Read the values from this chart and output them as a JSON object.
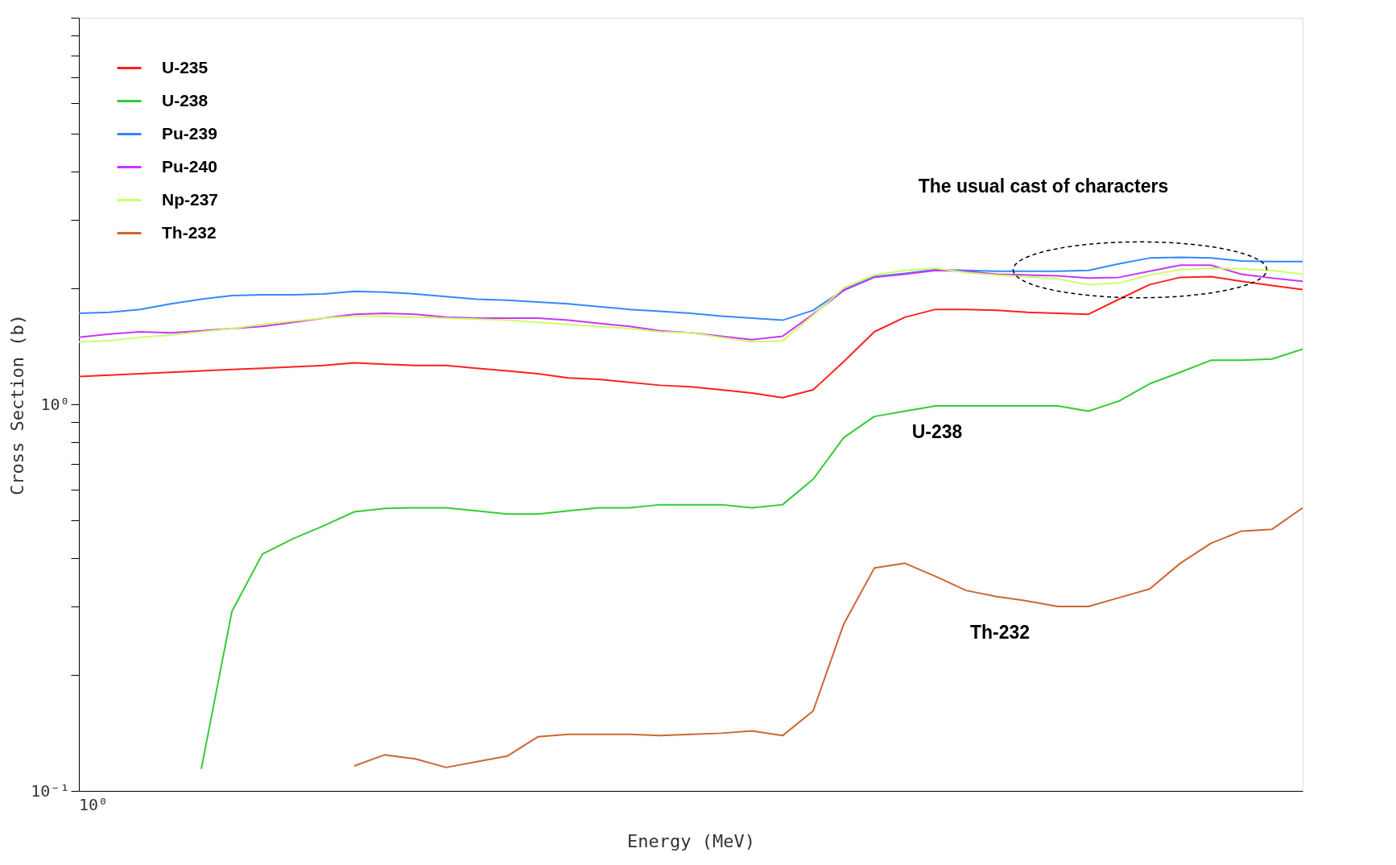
{
  "chart_data": {
    "type": "line",
    "xlabel": "Energy (MeV)",
    "ylabel": "Cross Section (b)",
    "log": "y",
    "grid": false,
    "legend": "top left",
    "line_style": "solid",
    "marker": "none",
    "categories": [
      null,
      null,
      null,
      null,
      null,
      null,
      null,
      null,
      null,
      null,
      null,
      null,
      null,
      null,
      null,
      null,
      null,
      null,
      null,
      null,
      null,
      null,
      null,
      null,
      null,
      null,
      null,
      null,
      null,
      null,
      null,
      null,
      null,
      null,
      null,
      null,
      null,
      null,
      null,
      null,
      null
    ],
    "ylim": [
      0.1,
      10
    ],
    "yticks": [
      {
        "value": 0.1,
        "label": "10⁻¹"
      },
      {
        "value": 0.2,
        "label": null
      },
      {
        "value": 0.3,
        "label": null
      },
      {
        "value": 0.4,
        "label": null
      },
      {
        "value": 0.5,
        "label": null
      },
      {
        "value": 0.6,
        "label": null
      },
      {
        "value": 0.7,
        "label": null
      },
      {
        "value": 0.8,
        "label": null
      },
      {
        "value": 0.9,
        "label": null
      },
      {
        "value": 1,
        "label": "10⁰"
      },
      {
        "value": 2,
        "label": null
      },
      {
        "value": 3,
        "label": null
      },
      {
        "value": 4,
        "label": null
      },
      {
        "value": 5,
        "label": null
      },
      {
        "value": 6,
        "label": null
      },
      {
        "value": 7,
        "label": null
      },
      {
        "value": 8,
        "label": null
      },
      {
        "value": 9,
        "label": null
      },
      {
        "value": 10,
        "label": null
      }
    ],
    "series": [
      {
        "name": "U-235",
        "color": "#ff2020",
        "values": [
          1.18,
          1.19,
          1.2,
          1.21,
          1.22,
          1.23,
          1.24,
          1.25,
          1.26,
          1.28,
          1.27,
          1.26,
          1.26,
          1.24,
          1.22,
          1.2,
          1.17,
          1.16,
          1.14,
          1.12,
          1.11,
          1.09,
          1.07,
          1.04,
          1.09,
          1.29,
          1.54,
          1.68,
          1.76,
          1.76,
          1.75,
          1.73,
          1.72,
          1.71,
          1.87,
          2.04,
          2.13,
          2.14,
          2.08,
          2.03,
          1.98
        ]
      },
      {
        "name": "U-238",
        "color": "#33cc33",
        "values": [
          null,
          null,
          null,
          null,
          0.114,
          0.291,
          0.41,
          0.449,
          0.485,
          0.527,
          0.538,
          0.54,
          0.54,
          0.53,
          0.52,
          0.52,
          0.53,
          0.54,
          0.54,
          0.55,
          0.55,
          0.55,
          0.54,
          0.55,
          0.64,
          0.82,
          0.93,
          0.96,
          0.99,
          0.99,
          0.99,
          0.99,
          0.99,
          0.96,
          1.02,
          1.13,
          1.21,
          1.3,
          1.3,
          1.31,
          1.39
        ]
      },
      {
        "name": "Pu-239",
        "color": "#3388ff",
        "values": [
          1.72,
          1.73,
          1.76,
          1.82,
          1.87,
          1.91,
          1.92,
          1.92,
          1.93,
          1.96,
          1.95,
          1.93,
          1.9,
          1.87,
          1.86,
          1.84,
          1.82,
          1.79,
          1.76,
          1.74,
          1.72,
          1.69,
          1.67,
          1.65,
          1.75,
          1.98,
          2.14,
          2.18,
          2.23,
          2.22,
          2.21,
          2.21,
          2.21,
          2.22,
          2.31,
          2.39,
          2.4,
          2.39,
          2.35,
          2.34,
          2.34
        ]
      },
      {
        "name": "Pu-240",
        "color": "#cc33ff",
        "values": [
          1.49,
          1.52,
          1.54,
          1.53,
          1.55,
          1.57,
          1.59,
          1.63,
          1.67,
          1.71,
          1.72,
          1.71,
          1.68,
          1.67,
          1.67,
          1.67,
          1.65,
          1.62,
          1.59,
          1.55,
          1.53,
          1.5,
          1.47,
          1.5,
          1.71,
          1.97,
          2.13,
          2.17,
          2.22,
          2.21,
          2.17,
          2.16,
          2.15,
          2.12,
          2.13,
          2.21,
          2.29,
          2.29,
          2.17,
          2.12,
          2.08
        ]
      },
      {
        "name": "Np-237",
        "color": "#ccff66",
        "values": [
          1.45,
          1.46,
          1.49,
          1.51,
          1.54,
          1.57,
          1.61,
          1.64,
          1.67,
          1.69,
          1.69,
          1.68,
          1.67,
          1.66,
          1.65,
          1.63,
          1.61,
          1.59,
          1.57,
          1.54,
          1.53,
          1.49,
          1.45,
          1.46,
          1.7,
          2.0,
          2.16,
          2.22,
          2.25,
          2.19,
          2.16,
          2.14,
          2.11,
          2.04,
          2.06,
          2.16,
          2.23,
          2.25,
          2.24,
          2.22,
          2.17
        ]
      },
      {
        "name": "Th-232",
        "color": "#cc6633",
        "values": [
          null,
          null,
          null,
          null,
          null,
          null,
          null,
          null,
          null,
          0.116,
          0.124,
          0.121,
          0.115,
          0.119,
          0.123,
          0.138,
          0.14,
          0.14,
          0.14,
          0.139,
          0.14,
          0.141,
          0.143,
          0.139,
          0.161,
          0.27,
          0.377,
          0.388,
          0.359,
          0.33,
          0.318,
          0.31,
          0.3,
          0.3,
          0.316,
          0.333,
          0.388,
          0.437,
          0.47,
          0.475,
          0.54
        ]
      }
    ],
    "annotations": [
      "10⁰",
      "The usual cast of characters",
      "U-238",
      "Th-232"
    ]
  }
}
